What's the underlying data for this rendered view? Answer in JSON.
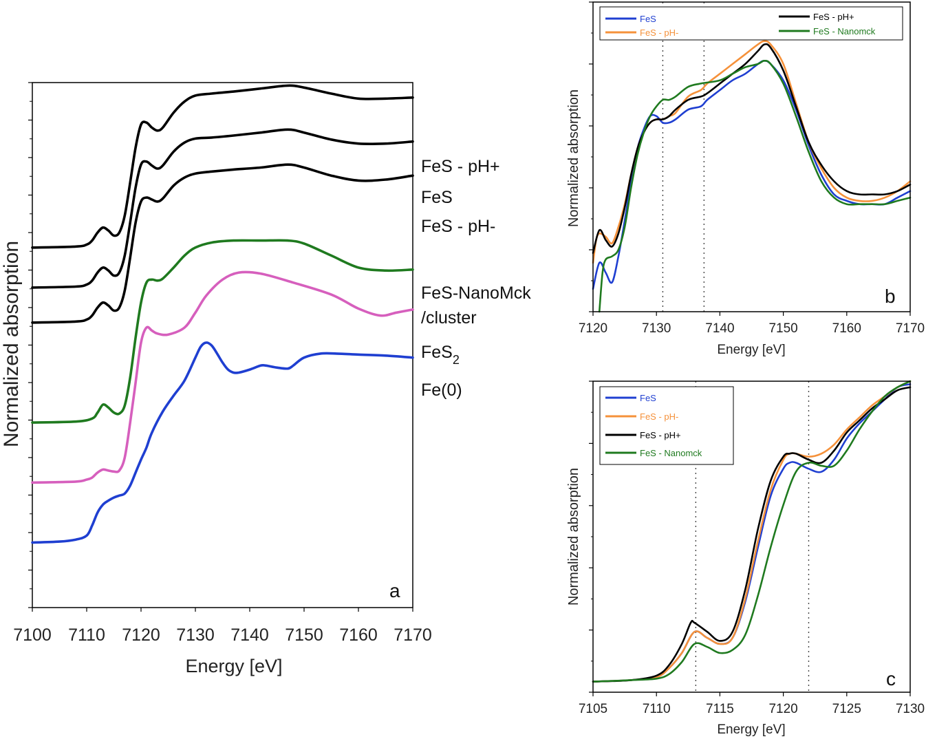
{
  "chart_data": [
    {
      "type": "line",
      "panel": "a",
      "xlabel": "Energy [eV]",
      "ylabel": "Normalized absorption",
      "xlim": [
        7100,
        7170
      ],
      "xticks": [
        7100,
        7110,
        7120,
        7130,
        7140,
        7150,
        7160,
        7170
      ],
      "y_tick_labels": "none",
      "stacked_offset": true,
      "series": [
        {
          "name": "FeS - pH+",
          "color": "#000000",
          "x": [
            7100,
            7108,
            7110,
            7111,
            7112,
            7113,
            7114,
            7115,
            7116,
            7117,
            7118,
            7119,
            7120,
            7121,
            7122,
            7123,
            7124,
            7126,
            7128,
            7130,
            7133,
            7137,
            7142,
            7147,
            7150,
            7155,
            7160,
            7165,
            7170
          ],
          "y": [
            2.3,
            2.31,
            2.33,
            2.37,
            2.45,
            2.5,
            2.47,
            2.42,
            2.45,
            2.62,
            2.95,
            3.3,
            3.53,
            3.55,
            3.5,
            3.47,
            3.5,
            3.65,
            3.76,
            3.82,
            3.84,
            3.86,
            3.89,
            3.92,
            3.9,
            3.84,
            3.79,
            3.79,
            3.8
          ]
        },
        {
          "name": "FeS",
          "color": "#000000",
          "x": [
            7100,
            7108,
            7110,
            7111,
            7112,
            7113,
            7114,
            7115,
            7116,
            7117,
            7118,
            7119,
            7120,
            7121,
            7122,
            7123,
            7124,
            7126,
            7128,
            7130,
            7133,
            7137,
            7142,
            7147,
            7150,
            7155,
            7160,
            7165,
            7170
          ],
          "y": [
            1.9,
            1.91,
            1.93,
            1.97,
            2.05,
            2.1,
            2.07,
            2.02,
            2.05,
            2.22,
            2.55,
            2.9,
            3.13,
            3.16,
            3.12,
            3.09,
            3.12,
            3.26,
            3.35,
            3.39,
            3.4,
            3.42,
            3.45,
            3.48,
            3.45,
            3.38,
            3.34,
            3.34,
            3.36
          ]
        },
        {
          "name": "FeS - pH-",
          "color": "#000000",
          "x": [
            7100,
            7108,
            7110,
            7111,
            7112,
            7113,
            7114,
            7115,
            7116,
            7117,
            7118,
            7119,
            7120,
            7121,
            7122,
            7123,
            7124,
            7126,
            7128,
            7130,
            7133,
            7137,
            7142,
            7147,
            7150,
            7155,
            7160,
            7165,
            7170
          ],
          "y": [
            1.55,
            1.56,
            1.58,
            1.62,
            1.7,
            1.75,
            1.72,
            1.67,
            1.7,
            1.87,
            2.2,
            2.55,
            2.76,
            2.8,
            2.78,
            2.76,
            2.79,
            2.92,
            3.0,
            3.04,
            3.06,
            3.08,
            3.1,
            3.13,
            3.1,
            3.02,
            2.97,
            2.98,
            3.02
          ]
        },
        {
          "name": "FeS-NanoMck /cluster",
          "color": "#1f7a1f",
          "x": [
            7100,
            7108,
            7111,
            7112,
            7113,
            7114,
            7115,
            7116,
            7117,
            7118,
            7119,
            7120,
            7121,
            7122,
            7123,
            7124,
            7126,
            7128,
            7130,
            7133,
            7137,
            7142,
            7147,
            7150,
            7155,
            7160,
            7165,
            7170
          ],
          "y": [
            0.55,
            0.56,
            0.59,
            0.65,
            0.73,
            0.7,
            0.65,
            0.64,
            0.72,
            1.0,
            1.4,
            1.75,
            1.95,
            1.98,
            1.97,
            1.99,
            2.1,
            2.22,
            2.3,
            2.35,
            2.37,
            2.37,
            2.37,
            2.34,
            2.22,
            2.1,
            2.07,
            2.08
          ]
        },
        {
          "name": "FeS2",
          "color": "#d65fbd",
          "x": [
            7100,
            7108,
            7110,
            7111,
            7112,
            7113,
            7114,
            7115,
            7116,
            7117,
            7118,
            7119,
            7120,
            7121,
            7122,
            7123,
            7125,
            7128,
            7130,
            7132,
            7135,
            7138,
            7142,
            7148,
            7155,
            7160,
            7164,
            7167,
            7170
          ],
          "y": [
            -0.05,
            -0.04,
            -0.02,
            0.0,
            0.05,
            0.08,
            0.07,
            0.06,
            0.07,
            0.2,
            0.55,
            0.95,
            1.35,
            1.5,
            1.47,
            1.44,
            1.43,
            1.5,
            1.65,
            1.82,
            1.98,
            2.05,
            2.04,
            1.95,
            1.83,
            1.69,
            1.62,
            1.65,
            1.68
          ]
        },
        {
          "name": "Fe(0)",
          "color": "#1f3fd1",
          "x": [
            7100,
            7105,
            7108,
            7110,
            7111,
            7112,
            7113,
            7114,
            7115,
            7116,
            7117,
            7118,
            7119,
            7120,
            7121,
            7122,
            7124,
            7126,
            7128,
            7130,
            7131,
            7132,
            7133,
            7134,
            7135,
            7136,
            7137,
            7138,
            7140,
            7142,
            7143,
            7145,
            7147,
            7148,
            7150,
            7153,
            7156,
            7160,
            7165,
            7170
          ],
          "y": [
            -0.65,
            -0.64,
            -0.62,
            -0.58,
            -0.48,
            -0.35,
            -0.27,
            -0.23,
            -0.2,
            -0.18,
            -0.16,
            -0.08,
            0.05,
            0.18,
            0.3,
            0.45,
            0.66,
            0.82,
            0.97,
            1.2,
            1.31,
            1.35,
            1.32,
            1.24,
            1.15,
            1.08,
            1.05,
            1.05,
            1.08,
            1.12,
            1.12,
            1.1,
            1.09,
            1.12,
            1.2,
            1.24,
            1.24,
            1.23,
            1.22,
            1.2
          ]
        }
      ],
      "series_label_texts": [
        "FeS - pH+",
        "FeS",
        "FeS - pH-",
        "FeS-NanoMck",
        "/cluster",
        "FeS",
        "2",
        "Fe(0)"
      ],
      "panel_letter": "a"
    },
    {
      "type": "line",
      "panel": "b",
      "xlabel": "Energy [eV]",
      "ylabel": "Normalized absorption",
      "xlim": [
        7120,
        7170
      ],
      "ylim": [
        0,
        1
      ],
      "xticks": [
        7120,
        7130,
        7140,
        7150,
        7160,
        7170
      ],
      "vlines": [
        7131,
        7137.5
      ],
      "legend_position": "top",
      "series": [
        {
          "name": "FeS",
          "color": "#1f3fd1",
          "x": [
            7120,
            7121,
            7122,
            7123,
            7124,
            7125,
            7126,
            7127,
            7128,
            7129,
            7130,
            7131,
            7132,
            7133,
            7135,
            7137,
            7138,
            7140,
            7142,
            7144,
            7146,
            7147,
            7148,
            7150,
            7152,
            7154,
            7156,
            7158,
            7160,
            7162,
            7164,
            7166,
            7168,
            7170
          ],
          "y": [
            0.07,
            0.15,
            0.12,
            0.09,
            0.17,
            0.28,
            0.4,
            0.5,
            0.56,
            0.6,
            0.6,
            0.58,
            0.58,
            0.59,
            0.62,
            0.63,
            0.65,
            0.68,
            0.71,
            0.73,
            0.76,
            0.77,
            0.76,
            0.71,
            0.62,
            0.51,
            0.42,
            0.36,
            0.34,
            0.33,
            0.33,
            0.33,
            0.35,
            0.37
          ]
        },
        {
          "name": "FeS - pH-",
          "color": "#f5913a",
          "x": [
            7120,
            7120.5,
            7121,
            7122,
            7123,
            7124,
            7125,
            7126,
            7127,
            7128,
            7129,
            7130,
            7131,
            7132,
            7133,
            7135,
            7137,
            7138,
            7140,
            7142,
            7144,
            7146,
            7147,
            7148,
            7150,
            7152,
            7154,
            7156,
            7158,
            7160,
            7162,
            7164,
            7166,
            7168,
            7170
          ],
          "y": [
            0.15,
            0.22,
            0.24,
            0.23,
            0.21,
            0.26,
            0.33,
            0.42,
            0.5,
            0.55,
            0.58,
            0.59,
            0.59,
            0.6,
            0.61,
            0.66,
            0.68,
            0.7,
            0.73,
            0.76,
            0.79,
            0.82,
            0.83,
            0.82,
            0.76,
            0.64,
            0.52,
            0.44,
            0.38,
            0.35,
            0.34,
            0.34,
            0.35,
            0.37,
            0.4
          ]
        },
        {
          "name": "FeS - pH+",
          "color": "#000000",
          "x": [
            7120,
            7121,
            7122,
            7123,
            7124,
            7125,
            7126,
            7127,
            7128,
            7129,
            7130,
            7131,
            7132,
            7133,
            7135,
            7137,
            7138,
            7140,
            7142,
            7144,
            7146,
            7147,
            7148,
            7150,
            7152,
            7154,
            7156,
            7158,
            7160,
            7162,
            7164,
            7166,
            7168,
            7170
          ],
          "y": [
            0.18,
            0.25,
            0.22,
            0.2,
            0.24,
            0.32,
            0.42,
            0.5,
            0.55,
            0.58,
            0.59,
            0.59,
            0.6,
            0.62,
            0.65,
            0.66,
            0.67,
            0.7,
            0.73,
            0.76,
            0.8,
            0.82,
            0.81,
            0.74,
            0.63,
            0.52,
            0.45,
            0.4,
            0.37,
            0.36,
            0.36,
            0.36,
            0.37,
            0.39
          ]
        },
        {
          "name": "FeS - Nanomck",
          "color": "#1f7a1f",
          "x": [
            7121,
            7121.5,
            7122,
            7123,
            7124,
            7125,
            7126,
            7127,
            7128,
            7129,
            7130,
            7131,
            7132,
            7133,
            7135,
            7137,
            7140,
            7142,
            7144,
            7146,
            7147,
            7148,
            7150,
            7152,
            7154,
            7156,
            7158,
            7160,
            7162,
            7164,
            7166,
            7168,
            7170
          ],
          "y": [
            0.0,
            0.12,
            0.16,
            0.17,
            0.19,
            0.26,
            0.38,
            0.48,
            0.55,
            0.6,
            0.63,
            0.65,
            0.65,
            0.66,
            0.69,
            0.7,
            0.71,
            0.73,
            0.75,
            0.76,
            0.77,
            0.76,
            0.7,
            0.6,
            0.49,
            0.4,
            0.35,
            0.33,
            0.33,
            0.33,
            0.33,
            0.34,
            0.35
          ]
        }
      ],
      "panel_letter": "b"
    },
    {
      "type": "line",
      "panel": "c",
      "xlabel": "Energy [eV]",
      "ylabel": "Normalized absorption",
      "xlim": [
        7105,
        7130
      ],
      "ylim": [
        0,
        1
      ],
      "xticks": [
        7105,
        7110,
        7115,
        7120,
        7125,
        7130
      ],
      "vlines": [
        7113.1,
        7122
      ],
      "legend_position": "top-left",
      "series": [
        {
          "name": "FeS",
          "color": "#1f3fd1",
          "x": [
            7105,
            7108,
            7110,
            7111,
            7112,
            7113,
            7114,
            7115,
            7116,
            7117,
            7118,
            7119,
            7120,
            7120.5,
            7121,
            7122,
            7123,
            7124,
            7125,
            7126,
            7127,
            7128,
            7129,
            7130
          ],
          "y": [
            0.005,
            0.01,
            0.02,
            0.05,
            0.1,
            0.17,
            0.15,
            0.13,
            0.15,
            0.27,
            0.45,
            0.62,
            0.71,
            0.73,
            0.73,
            0.71,
            0.7,
            0.74,
            0.81,
            0.86,
            0.9,
            0.94,
            0.98,
            0.99
          ]
        },
        {
          "name": "FeS - pH-",
          "color": "#f5913a",
          "x": [
            7105,
            7108,
            7110,
            7111,
            7112,
            7113,
            7114,
            7115,
            7116,
            7117,
            7118,
            7119,
            7120,
            7120.5,
            7121,
            7122,
            7123,
            7124,
            7125,
            7126,
            7127,
            7128,
            7129,
            7130
          ],
          "y": [
            0.005,
            0.01,
            0.02,
            0.05,
            0.1,
            0.17,
            0.15,
            0.13,
            0.15,
            0.28,
            0.47,
            0.64,
            0.74,
            0.76,
            0.76,
            0.75,
            0.76,
            0.79,
            0.84,
            0.88,
            0.92,
            0.95,
            0.98,
            1.0
          ]
        },
        {
          "name": "FeS - pH+",
          "color": "#000000",
          "x": [
            7105,
            7108,
            7110,
            7111,
            7112,
            7112.7,
            7113,
            7114,
            7115,
            7116,
            7117,
            7118,
            7119,
            7120,
            7120.5,
            7121,
            7122,
            7123,
            7124,
            7125,
            7126,
            7127,
            7128,
            7129,
            7130
          ],
          "y": [
            0.005,
            0.01,
            0.025,
            0.06,
            0.13,
            0.2,
            0.2,
            0.17,
            0.14,
            0.17,
            0.31,
            0.51,
            0.67,
            0.75,
            0.76,
            0.76,
            0.74,
            0.73,
            0.77,
            0.83,
            0.87,
            0.91,
            0.94,
            0.97,
            0.98
          ]
        },
        {
          "name": "FeS - Nanomck",
          "color": "#1f7a1f",
          "x": [
            7105,
            7108,
            7110,
            7111,
            7112,
            7113,
            7114,
            7115,
            7116,
            7117,
            7118,
            7119,
            7120,
            7121,
            7122,
            7123,
            7124,
            7125,
            7126,
            7127,
            7128,
            7129,
            7130
          ],
          "y": [
            0.005,
            0.01,
            0.015,
            0.03,
            0.07,
            0.13,
            0.12,
            0.1,
            0.11,
            0.16,
            0.29,
            0.45,
            0.59,
            0.7,
            0.73,
            0.72,
            0.72,
            0.77,
            0.84,
            0.9,
            0.95,
            0.98,
            1.0
          ]
        }
      ],
      "panel_letter": "c"
    }
  ]
}
